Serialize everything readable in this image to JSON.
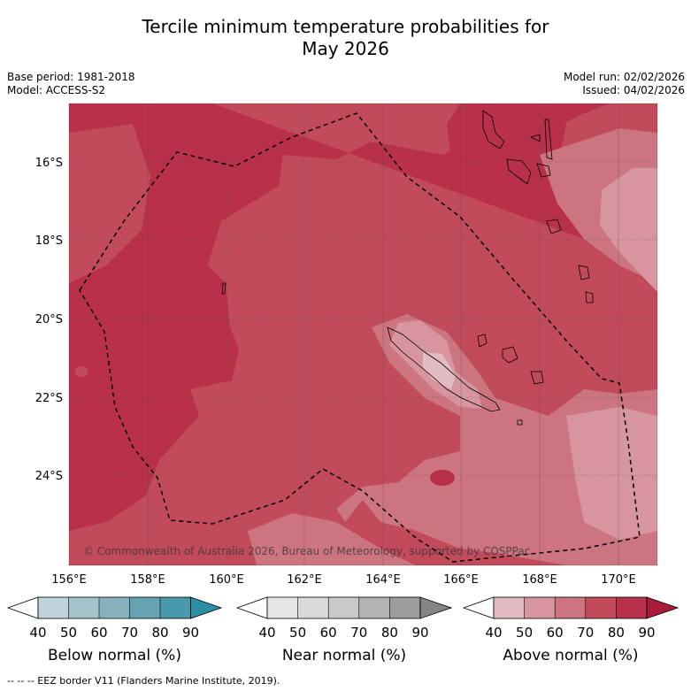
{
  "title": {
    "line1": "Tercile minimum temperature probabilities for",
    "line2": "May 2026"
  },
  "meta": {
    "base_period": "Base period: 1981-2018",
    "model": "Model: ACCESS-S2",
    "model_run": "Model run: 02/02/2026",
    "issued": "Issued: 04/02/2026"
  },
  "map": {
    "lat_labels": [
      "16°S",
      "18°S",
      "20°S",
      "22°S",
      "24°S"
    ],
    "lon_labels": [
      "156°E",
      "158°E",
      "160°E",
      "162°E",
      "164°E",
      "166°E",
      "168°E",
      "170°E"
    ],
    "copyright": "© Commonwealth of Australia 2026, Bureau of Meteorology, supported by COSPPac",
    "colors": {
      "above_90": "#ab1b3c",
      "above_80": "#b83049",
      "above_70": "#c14a5b",
      "above_60": "#cc7480",
      "above_50": "#d7969f",
      "above_40": "#e2bcc2"
    }
  },
  "colorbars": [
    {
      "name": "below",
      "title": "Below normal (%)",
      "ticks": [
        "40",
        "50",
        "60",
        "70",
        "80",
        "90"
      ],
      "colors": [
        "#ffffff",
        "#bed4da",
        "#a4c4ca",
        "#86b2bd",
        "#65a3b2",
        "#4799ab",
        "#2c8ea3"
      ]
    },
    {
      "name": "near",
      "title": "Near normal (%)",
      "ticks": [
        "40",
        "50",
        "60",
        "70",
        "80",
        "90"
      ],
      "colors": [
        "#ffffff",
        "#e5e5e5",
        "#d9d9d9",
        "#c9c9c9",
        "#b3b3b3",
        "#9c9c9c",
        "#858585"
      ]
    },
    {
      "name": "above",
      "title": "Above normal (%)",
      "ticks": [
        "40",
        "50",
        "60",
        "70",
        "80",
        "90"
      ],
      "colors": [
        "#ffffff",
        "#e2bcc2",
        "#d7969f",
        "#cc7480",
        "#c14a5b",
        "#b83049",
        "#ab1b3c"
      ]
    }
  ],
  "footer": "--  --  -- EEZ border V11 (Flanders Marine Institute, 2019)."
}
